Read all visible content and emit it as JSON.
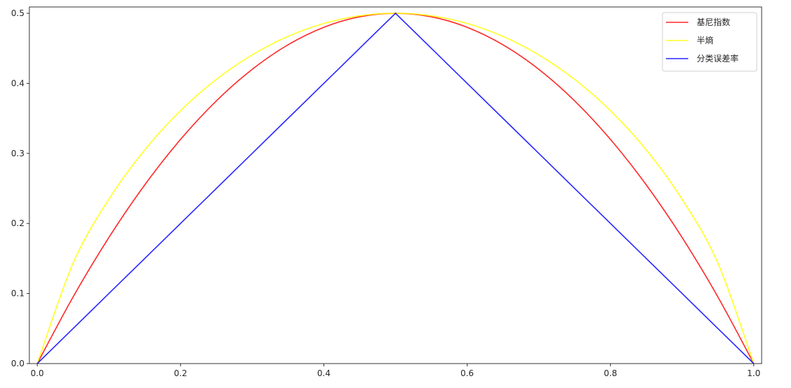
{
  "chart_data": {
    "type": "line",
    "title": "",
    "xlabel": "",
    "ylabel": "",
    "xlim": [
      -0.011,
      1.011
    ],
    "ylim": [
      0,
      0.509
    ],
    "grid": false,
    "legend_placement": "top-right",
    "x_ticks": [
      "0.0",
      "0.2",
      "0.4",
      "0.6",
      "0.8",
      "1.0"
    ],
    "y_ticks": [
      "0.0",
      "0.1",
      "0.2",
      "0.3",
      "0.4",
      "0.5"
    ],
    "x": [
      0,
      0.05,
      0.1,
      0.15,
      0.2,
      0.25,
      0.3,
      0.35,
      0.4,
      0.45,
      0.5,
      0.55,
      0.6,
      0.65,
      0.7,
      0.75,
      0.8,
      0.85,
      0.9,
      0.95,
      1
    ],
    "series": [
      {
        "name": "基尼指数",
        "color": "#ff0000",
        "smooth": true,
        "values": [
          0,
          0.095,
          0.18,
          0.255,
          0.32,
          0.375,
          0.42,
          0.455,
          0.48,
          0.495,
          0.5,
          0.495,
          0.48,
          0.455,
          0.42,
          0.375,
          0.32,
          0.255,
          0.18,
          0.095,
          0
        ]
      },
      {
        "name": "半熵",
        "color": "#ffff00",
        "smooth": true,
        "values": [
          0,
          0.1432,
          0.2345,
          0.3049,
          0.361,
          0.4056,
          0.4406,
          0.467,
          0.4855,
          0.4964,
          0.5,
          0.4964,
          0.4855,
          0.467,
          0.4406,
          0.4056,
          0.361,
          0.3049,
          0.2345,
          0.1432,
          0
        ]
      },
      {
        "name": "分类误差率",
        "color": "#0000ff",
        "smooth": false,
        "values": [
          0,
          0.05,
          0.1,
          0.15,
          0.2,
          0.25,
          0.3,
          0.35,
          0.4,
          0.45,
          0.5,
          0.45,
          0.4,
          0.35,
          0.3,
          0.25,
          0.2,
          0.15,
          0.1,
          0.05,
          0
        ]
      }
    ]
  }
}
